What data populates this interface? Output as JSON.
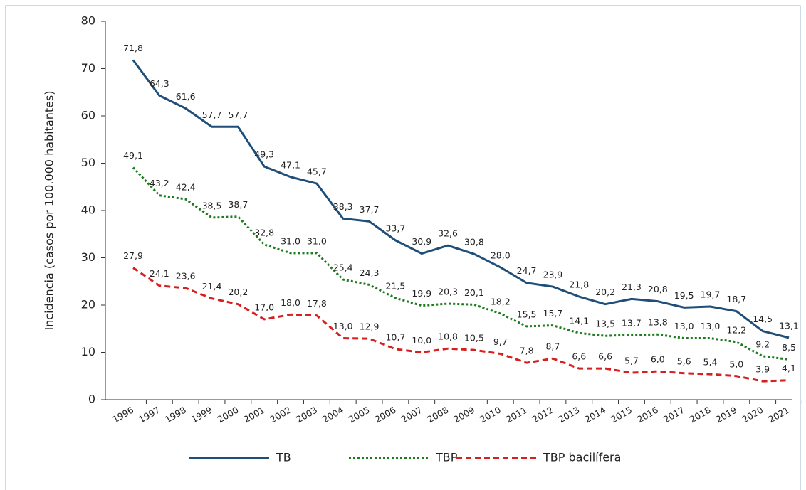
{
  "chart_data": {
    "type": "line",
    "y_label": "Incidencia (casos por 100.000 habitantes)",
    "categories": [
      "1996",
      "1997",
      "1998",
      "1999",
      "2000",
      "2001",
      "2002",
      "2003",
      "2004",
      "2005",
      "2006",
      "2007",
      "2008",
      "2009",
      "2010",
      "2011",
      "2012",
      "2013",
      "2014",
      "2015",
      "2016",
      "2017",
      "2018",
      "2019",
      "2020",
      "2021"
    ],
    "series": [
      {
        "name": "TB",
        "color": "#1f4e79",
        "dash": "solid",
        "values": [
          71.8,
          64.3,
          61.6,
          57.7,
          57.7,
          49.3,
          47.1,
          45.7,
          38.3,
          37.7,
          33.7,
          30.9,
          32.6,
          30.8,
          28.0,
          24.7,
          23.9,
          21.8,
          20.2,
          21.3,
          20.8,
          19.5,
          19.7,
          18.7,
          14.5,
          13.1
        ],
        "value_labels": [
          "71,8",
          "64,3",
          "61,6",
          "57,7",
          "57,7",
          "49,3",
          "47,1",
          "45,7",
          "38,3",
          "37,7",
          "33,7",
          "30,9",
          "32,6",
          "30,8",
          "28,0",
          "24,7",
          "23,9",
          "21,8",
          "20,2",
          "21,3",
          "20,8",
          "19,5",
          "19,7",
          "18,7",
          "14,5",
          "13,1"
        ]
      },
      {
        "name": "TBP",
        "color": "#1e7b1e",
        "dash": "dotted",
        "values": [
          49.1,
          43.2,
          42.4,
          38.5,
          38.7,
          32.8,
          31.0,
          31.0,
          25.4,
          24.3,
          21.5,
          19.9,
          20.3,
          20.1,
          18.2,
          15.5,
          15.7,
          14.1,
          13.5,
          13.7,
          13.8,
          13.0,
          13.0,
          12.2,
          9.2,
          8.5
        ],
        "value_labels": [
          "49,1",
          "43,2",
          "42,4",
          "38,5",
          "38,7",
          "32,8",
          "31,0",
          "31,0",
          "25,4",
          "24,3",
          "21,5",
          "19,9",
          "20,3",
          "20,1",
          "18,2",
          "15,5",
          "15,7",
          "14,1",
          "13,5",
          "13,7",
          "13,8",
          "13,0",
          "13,0",
          "12,2",
          "9,2",
          "8,5"
        ]
      },
      {
        "name": "TBP bacilífera",
        "color": "#d62020",
        "dash": "dashed",
        "values": [
          27.9,
          24.1,
          23.6,
          21.4,
          20.2,
          17.0,
          18.0,
          17.8,
          13.0,
          12.9,
          10.7,
          10.0,
          10.8,
          10.5,
          9.7,
          7.8,
          8.7,
          6.6,
          6.6,
          5.7,
          6.0,
          5.6,
          5.4,
          5.0,
          3.9,
          4.1
        ],
        "value_labels": [
          "27,9",
          "24,1",
          "23,6",
          "21,4",
          "20,2",
          "17,0",
          "18,0",
          "17,8",
          "13,0",
          "12,9",
          "10,7",
          "10,0",
          "10,8",
          "10,5",
          "9,7",
          "7,8",
          "8,7",
          "6,6",
          "6,6",
          "5,7",
          "6,0",
          "5,6",
          "5,4",
          "5,0",
          "3,9",
          "4,1"
        ]
      }
    ],
    "ylim": [
      0,
      80
    ],
    "yticks": [
      0,
      10,
      20,
      30,
      40,
      50,
      60,
      70,
      80
    ],
    "legend": "bottom",
    "grid": false
  }
}
